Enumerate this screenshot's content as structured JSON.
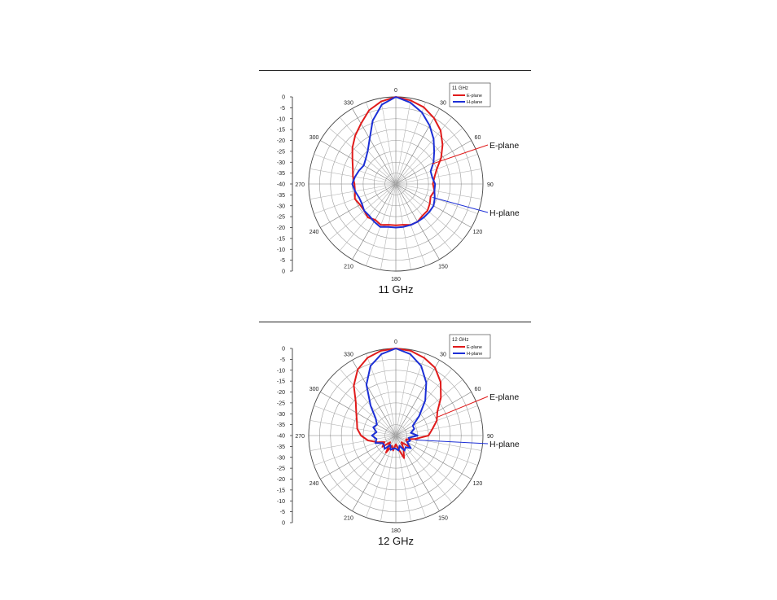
{
  "chart_data": [
    {
      "type": "line",
      "polar": true,
      "caption": "11 GHz",
      "legend": {
        "title": "11 GHz",
        "placement": "top-right",
        "entries": [
          "E-plane",
          "H-plane"
        ]
      },
      "angular_ticks": [
        "0",
        "30",
        "60",
        "90",
        "120",
        "150",
        "180",
        "210",
        "240",
        "270",
        "300",
        "330"
      ],
      "radial_ticks": [
        "0",
        "-5",
        "-10",
        "-15",
        "-20",
        "-25",
        "-30",
        "-35",
        "-40",
        "-35",
        "-30",
        "-25",
        "-20",
        "-15",
        "-10",
        "-5",
        "0"
      ],
      "radial_range_db": [
        -40,
        0
      ],
      "annotations": [
        "E-plane",
        "H-plane"
      ],
      "series": [
        {
          "name": "E-plane",
          "color": "#e01b1b",
          "x_deg": [
            0,
            10,
            20,
            30,
            40,
            50,
            60,
            70,
            80,
            90,
            100,
            110,
            120,
            130,
            140,
            150,
            160,
            170,
            180,
            190,
            200,
            210,
            220,
            230,
            240,
            250,
            260,
            270,
            280,
            290,
            300,
            310,
            320,
            330,
            340,
            350
          ],
          "y_db": [
            0,
            -1,
            -2.5,
            -5,
            -8,
            -12,
            -16,
            -20,
            -22,
            -23,
            -22,
            -23,
            -22,
            -21,
            -21,
            -20,
            -20,
            -21,
            -21,
            -21,
            -20,
            -21,
            -20,
            -21,
            -21,
            -20,
            -21,
            -21,
            -20,
            -19,
            -17,
            -14,
            -11,
            -8,
            -4,
            -1.5
          ]
        },
        {
          "name": "H-plane",
          "color": "#1c2fd6",
          "x_deg": [
            0,
            10,
            20,
            30,
            40,
            50,
            60,
            70,
            80,
            90,
            100,
            110,
            120,
            130,
            140,
            150,
            160,
            170,
            180,
            190,
            200,
            210,
            220,
            230,
            240,
            250,
            260,
            270,
            280,
            290,
            300,
            310,
            320,
            330,
            340,
            350
          ],
          "y_db": [
            0,
            -2,
            -5,
            -9,
            -13,
            -17,
            -20,
            -23,
            -23,
            -22,
            -22,
            -21,
            -20,
            -20,
            -20,
            -20,
            -20,
            -20,
            -20,
            -20,
            -19,
            -20,
            -21,
            -21,
            -22,
            -22,
            -21,
            -20,
            -21,
            -22,
            -23,
            -22,
            -20,
            -16,
            -9,
            -3
          ]
        }
      ]
    },
    {
      "type": "line",
      "polar": true,
      "caption": "12 GHz",
      "legend": {
        "title": "12 GHz",
        "placement": "top-right",
        "entries": [
          "E-plane",
          "H-plane"
        ]
      },
      "angular_ticks": [
        "0",
        "30",
        "60",
        "90",
        "120",
        "150",
        "180",
        "210",
        "240",
        "270",
        "300",
        "330"
      ],
      "radial_ticks": [
        "0",
        "-5",
        "-10",
        "-15",
        "-20",
        "-25",
        "-30",
        "-35",
        "-40",
        "-35",
        "-30",
        "-25",
        "-20",
        "-15",
        "-10",
        "-5",
        "0"
      ],
      "radial_range_db": [
        -40,
        0
      ],
      "annotations": [
        "E-plane",
        "H-plane"
      ],
      "series": [
        {
          "name": "E-plane",
          "color": "#e01b1b",
          "x_deg": [
            0,
            10,
            20,
            30,
            40,
            50,
            60,
            70,
            80,
            90,
            100,
            110,
            120,
            130,
            140,
            150,
            160,
            170,
            180,
            190,
            200,
            210,
            220,
            230,
            240,
            250,
            260,
            270,
            280,
            290,
            300,
            310,
            320,
            330,
            340,
            350
          ],
          "y_db": [
            0,
            -0.5,
            -2,
            -4,
            -8,
            -13,
            -18,
            -20,
            -23,
            -25,
            -31,
            -35,
            -34,
            -32,
            -36,
            -33,
            -29,
            -34,
            -36,
            -33,
            -35,
            -31,
            -36,
            -32,
            -34,
            -31,
            -27,
            -24,
            -22,
            -21,
            -19,
            -16,
            -10,
            -5,
            -2,
            -0.5
          ]
        },
        {
          "name": "H-plane",
          "color": "#1c2fd6",
          "x_deg": [
            0,
            10,
            20,
            30,
            40,
            50,
            60,
            70,
            80,
            90,
            100,
            110,
            120,
            130,
            140,
            150,
            160,
            170,
            180,
            190,
            200,
            210,
            220,
            230,
            240,
            250,
            260,
            270,
            280,
            290,
            300,
            310,
            320,
            330,
            340,
            350
          ],
          "y_db": [
            0,
            -2,
            -6,
            -12,
            -19,
            -26,
            -31,
            -31,
            -33,
            -30,
            -34,
            -33,
            -34,
            -31,
            -33,
            -32,
            -35,
            -33,
            -34,
            -34,
            -33,
            -35,
            -32,
            -33,
            -33,
            -30,
            -31,
            -29,
            -31,
            -29,
            -30,
            -28,
            -22,
            -13,
            -6,
            -2
          ]
        }
      ]
    }
  ]
}
